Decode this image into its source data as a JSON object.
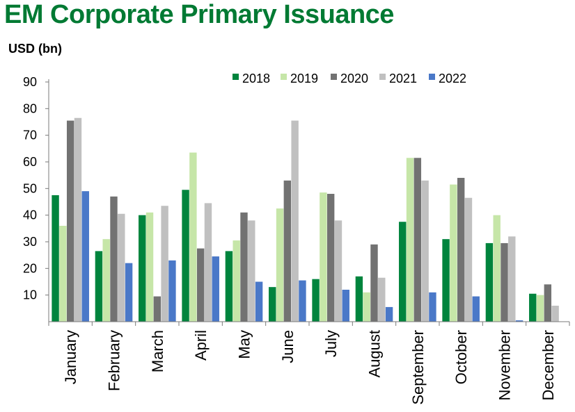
{
  "chart_data": {
    "type": "bar",
    "title": "EM Corporate Primary Issuance",
    "ylabel": "USD (bn)",
    "xlabel": "",
    "ylim": [
      0,
      90
    ],
    "yticks": [
      10,
      20,
      30,
      40,
      50,
      60,
      70,
      80,
      90
    ],
    "categories": [
      "January",
      "February",
      "March",
      "April",
      "May",
      "June",
      "July",
      "August",
      "September",
      "October",
      "November",
      "December"
    ],
    "legend_position": "top-right",
    "series": [
      {
        "name": "2018",
        "color": "#00843d",
        "values": [
          47.5,
          26.5,
          40,
          49.5,
          26.5,
          13,
          16,
          17,
          37.5,
          31,
          29.5,
          10.5
        ]
      },
      {
        "name": "2019",
        "color": "#c6e6a8",
        "values": [
          36,
          31,
          41,
          63.5,
          30.5,
          42.5,
          48.5,
          11,
          61.5,
          51.5,
          40,
          10
        ]
      },
      {
        "name": "2020",
        "color": "#727272",
        "values": [
          75.5,
          47,
          9.5,
          27.5,
          41,
          53,
          48,
          29,
          61.5,
          54,
          29.5,
          14
        ]
      },
      {
        "name": "2021",
        "color": "#c0c0c0",
        "values": [
          76.5,
          40.5,
          43.5,
          44.5,
          38,
          75.5,
          38,
          16.5,
          53,
          46.5,
          32,
          6
        ]
      },
      {
        "name": "2022",
        "color": "#4a78c8",
        "values": [
          49,
          22,
          23,
          24.5,
          15,
          15.5,
          12,
          5.5,
          11,
          9.5,
          0.5,
          null
        ]
      }
    ]
  }
}
